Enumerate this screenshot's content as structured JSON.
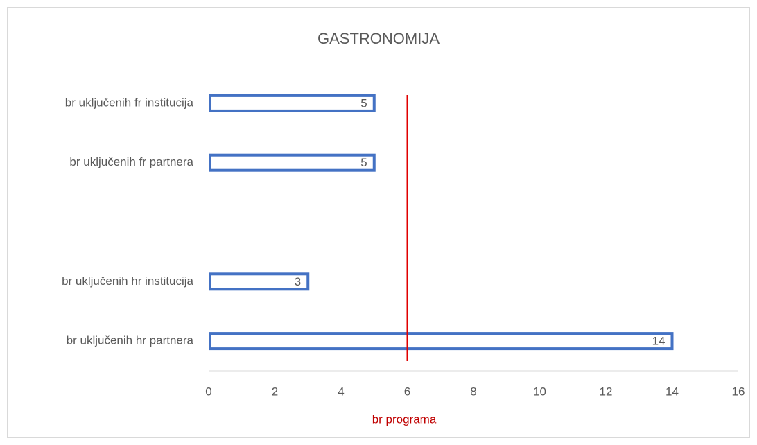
{
  "chart_data": {
    "type": "barh",
    "title": "GASTRONOMIJA",
    "categories": [
      "br uključenih fr institucija",
      "br uključenih fr partnera",
      null,
      "br uključenih hr institucija",
      "br uključenih hr partnera"
    ],
    "values": [
      5,
      5,
      null,
      3,
      14
    ],
    "color": "#4472c4",
    "x_label": "br programa",
    "x_label_color": "#c00000",
    "reference_line": {
      "value": 6,
      "color": "#e00000"
    },
    "xlim": [
      0,
      16
    ],
    "xticks": [
      0,
      2,
      4,
      6,
      8,
      10,
      12,
      14,
      16
    ],
    "grid": false
  }
}
